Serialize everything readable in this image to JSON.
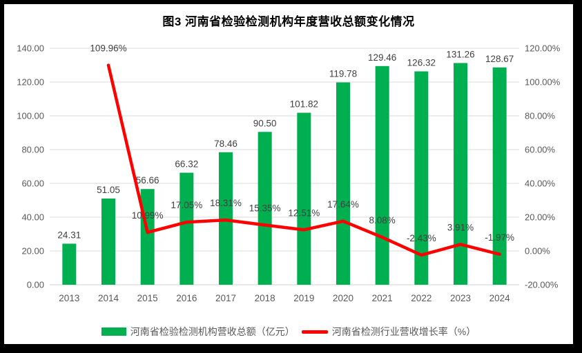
{
  "frame": {
    "border_color": "#000000",
    "background_color": "#ffffff"
  },
  "chart_data": {
    "type": "bar",
    "combo_with": "line",
    "title": "图3  河南省检验检测机构年度营收总额变化情况",
    "categories": [
      "2013",
      "2014",
      "2015",
      "2016",
      "2017",
      "2018",
      "2019",
      "2020",
      "2021",
      "2022",
      "2023",
      "2024"
    ],
    "series": [
      {
        "name": "河南省检验检测机构营收总额（亿元）",
        "type": "bar",
        "axis": "left",
        "color": "#00B050",
        "values": [
          24.31,
          51.05,
          56.66,
          66.32,
          78.46,
          90.5,
          101.82,
          119.78,
          129.46,
          126.32,
          131.26,
          128.67
        ],
        "labels": [
          "24.31",
          "51.05",
          "56.66",
          "66.32",
          "78.46",
          "90.50",
          "101.82",
          "119.78",
          "129.46",
          "126.32",
          "131.26",
          "128.67"
        ]
      },
      {
        "name": "河南省检测行业营收增长率（%）",
        "type": "line",
        "axis": "right",
        "color": "#FF0000",
        "start_index": 1,
        "values": [
          109.96,
          10.99,
          17.05,
          18.31,
          15.35,
          12.51,
          17.64,
          8.08,
          -2.43,
          3.91,
          -1.97
        ],
        "labels": [
          "109.96%",
          "10.99%",
          "17.05%",
          "18.31%",
          "15.35%",
          "12.51%",
          "17.64%",
          "8.08%",
          "-2.43%",
          "3.91%",
          "-1.97%"
        ]
      }
    ],
    "left_axis": {
      "min": 0,
      "max": 140,
      "step": 20,
      "tick_labels": [
        "0.00",
        "20.00",
        "40.00",
        "60.00",
        "80.00",
        "100.00",
        "120.00",
        "140.00"
      ]
    },
    "right_axis": {
      "min": -20,
      "max": 120,
      "step": 20,
      "tick_labels": [
        "-20.00%",
        "0.00%",
        "20.00%",
        "40.00%",
        "60.00%",
        "80.00%",
        "100.00%",
        "120.00%"
      ]
    },
    "grid": {
      "on": true,
      "color": "#D9D9D9"
    },
    "legend_position": "bottom"
  },
  "styles": {
    "axis_label_color": "#595959",
    "data_label_color": "#404040",
    "title_color": "#000000",
    "baseline_color": "#D0D0D0"
  }
}
